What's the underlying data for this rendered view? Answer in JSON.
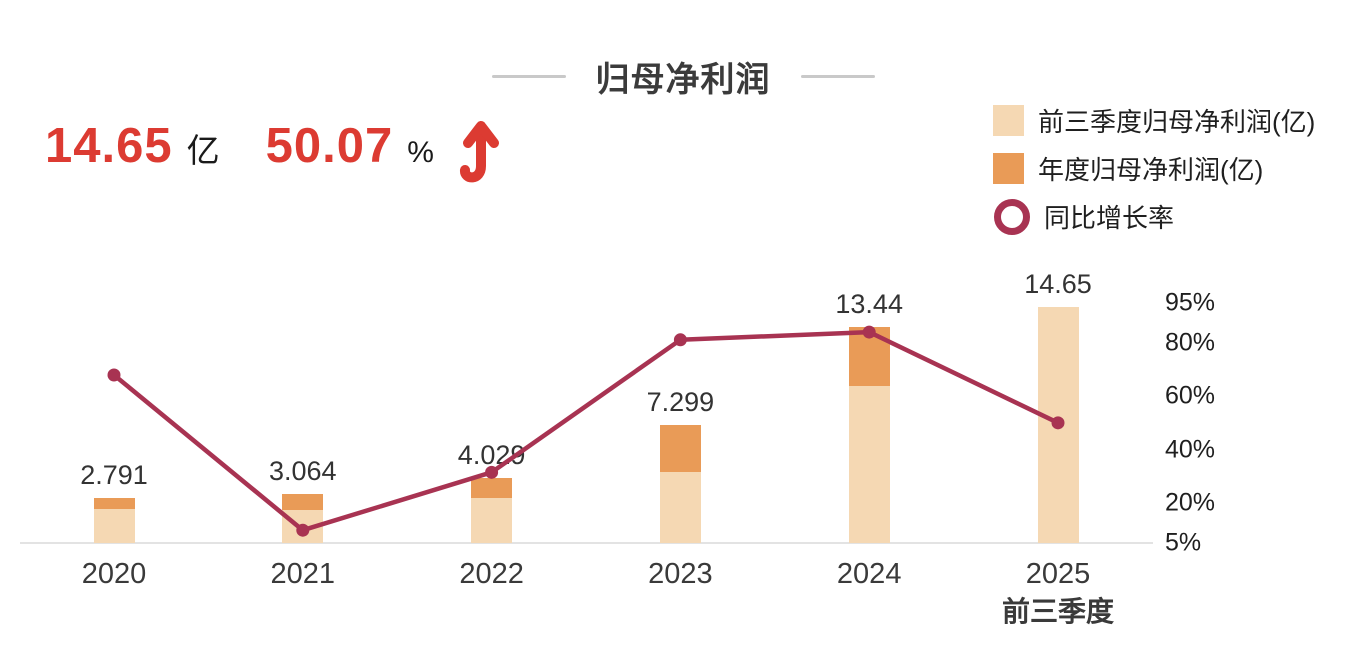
{
  "title": "归母净利润",
  "stats": {
    "value": "14.65",
    "value_unit": "亿",
    "growth": "50.07",
    "growth_unit": "%",
    "trend_icon": "up-arrow",
    "value_color": "#dc3b32"
  },
  "legend": [
    {
      "label": "前三季度归母净利润(亿)",
      "swatch": "square",
      "color": "#f5d8b3"
    },
    {
      "label": "年度归母净利润(亿)",
      "swatch": "square",
      "color": "#e99b57"
    },
    {
      "label": "同比增长率",
      "swatch": "ring",
      "color": "#a83352"
    }
  ],
  "chart_data": {
    "type": "bar",
    "subtype": "stacked-bar-with-line",
    "categories": [
      "2020",
      "2021",
      "2022",
      "2023",
      "2024",
      "2025"
    ],
    "category_sublabels": [
      "",
      "",
      "",
      "",
      "",
      "前三季度"
    ],
    "bar_value_labels": [
      "2.791",
      "3.064",
      "4.029",
      "7.299",
      "13.44",
      "14.65"
    ],
    "series": [
      {
        "name": "前三季度归母净利润(亿)",
        "type": "bar",
        "color": "#f5d8b3",
        "values": [
          2.1,
          2.05,
          2.8,
          4.4,
          9.76,
          14.65
        ]
      },
      {
        "name": "年度归母净利润(亿)",
        "type": "bar-top-segment",
        "color": "#e99b57",
        "values": [
          2.791,
          3.064,
          4.029,
          7.299,
          13.44,
          null
        ]
      },
      {
        "name": "同比增长率",
        "type": "line",
        "color": "#a83352",
        "values": [
          68,
          9.8,
          31.5,
          81.2,
          84.1,
          50.07
        ]
      }
    ],
    "right_axis": {
      "tick_values": [
        95,
        80,
        60,
        40,
        20,
        5
      ],
      "tick_labels": [
        "95%",
        "80%",
        "60%",
        "40%",
        "20%",
        "5%"
      ],
      "min": 5,
      "max": 95,
      "unit": "%"
    },
    "left_axis": {
      "visible": false,
      "unit": "亿"
    },
    "grid": false,
    "legend_position": "top-right",
    "baseline_color": "#e3e3e3"
  }
}
